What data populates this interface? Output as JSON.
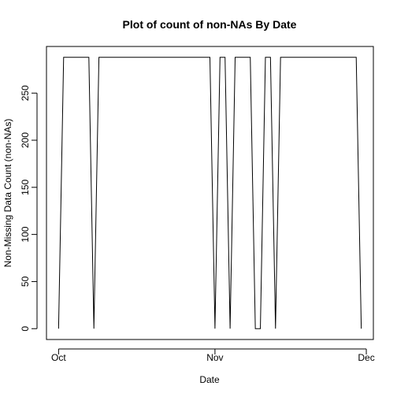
{
  "chart_data": {
    "type": "line",
    "title": "Plot of count of non-NAs By Date",
    "xlabel": "Date",
    "ylabel": "Non-Missing Data Count (non-NAs)",
    "xlim": [
      "2013-10-01",
      "2013-11-30"
    ],
    "ylim": [
      -11.5,
      299.5
    ],
    "x_ticks": [
      {
        "date": "2013-10-01",
        "label": "Oct"
      },
      {
        "date": "2013-11-01",
        "label": "Nov"
      },
      {
        "date": "2013-12-01",
        "label": "Dec"
      }
    ],
    "y_ticks": [
      0,
      50,
      100,
      150,
      200,
      250
    ],
    "grid": false,
    "legend": "none",
    "series": [
      {
        "x": [
          "2013-10-01",
          "2013-10-02",
          "2013-10-03",
          "2013-10-04",
          "2013-10-05",
          "2013-10-06",
          "2013-10-07",
          "2013-10-08",
          "2013-10-09",
          "2013-10-10",
          "2013-10-11",
          "2013-10-12",
          "2013-10-13",
          "2013-10-14",
          "2013-10-15",
          "2013-10-16",
          "2013-10-17",
          "2013-10-18",
          "2013-10-19",
          "2013-10-20",
          "2013-10-21",
          "2013-10-22",
          "2013-10-23",
          "2013-10-24",
          "2013-10-25",
          "2013-10-26",
          "2013-10-27",
          "2013-10-28",
          "2013-10-29",
          "2013-10-30",
          "2013-10-31",
          "2013-11-01",
          "2013-11-02",
          "2013-11-03",
          "2013-11-04",
          "2013-11-05",
          "2013-11-06",
          "2013-11-07",
          "2013-11-08",
          "2013-11-09",
          "2013-11-10",
          "2013-11-11",
          "2013-11-12",
          "2013-11-13",
          "2013-11-14",
          "2013-11-15",
          "2013-11-16",
          "2013-11-17",
          "2013-11-18",
          "2013-11-19",
          "2013-11-20",
          "2013-11-21",
          "2013-11-22",
          "2013-11-23",
          "2013-11-24",
          "2013-11-25",
          "2013-11-26",
          "2013-11-27",
          "2013-11-28",
          "2013-11-29",
          "2013-11-30"
        ],
        "values": [
          0,
          288,
          288,
          288,
          288,
          288,
          288,
          0,
          288,
          288,
          288,
          288,
          288,
          288,
          288,
          288,
          288,
          288,
          288,
          288,
          288,
          288,
          288,
          288,
          288,
          288,
          288,
          288,
          288,
          288,
          288,
          0,
          288,
          288,
          0,
          288,
          288,
          288,
          288,
          0,
          0,
          288,
          288,
          0,
          288,
          288,
          288,
          288,
          288,
          288,
          288,
          288,
          288,
          288,
          288,
          288,
          288,
          288,
          288,
          288,
          0
        ]
      }
    ]
  }
}
